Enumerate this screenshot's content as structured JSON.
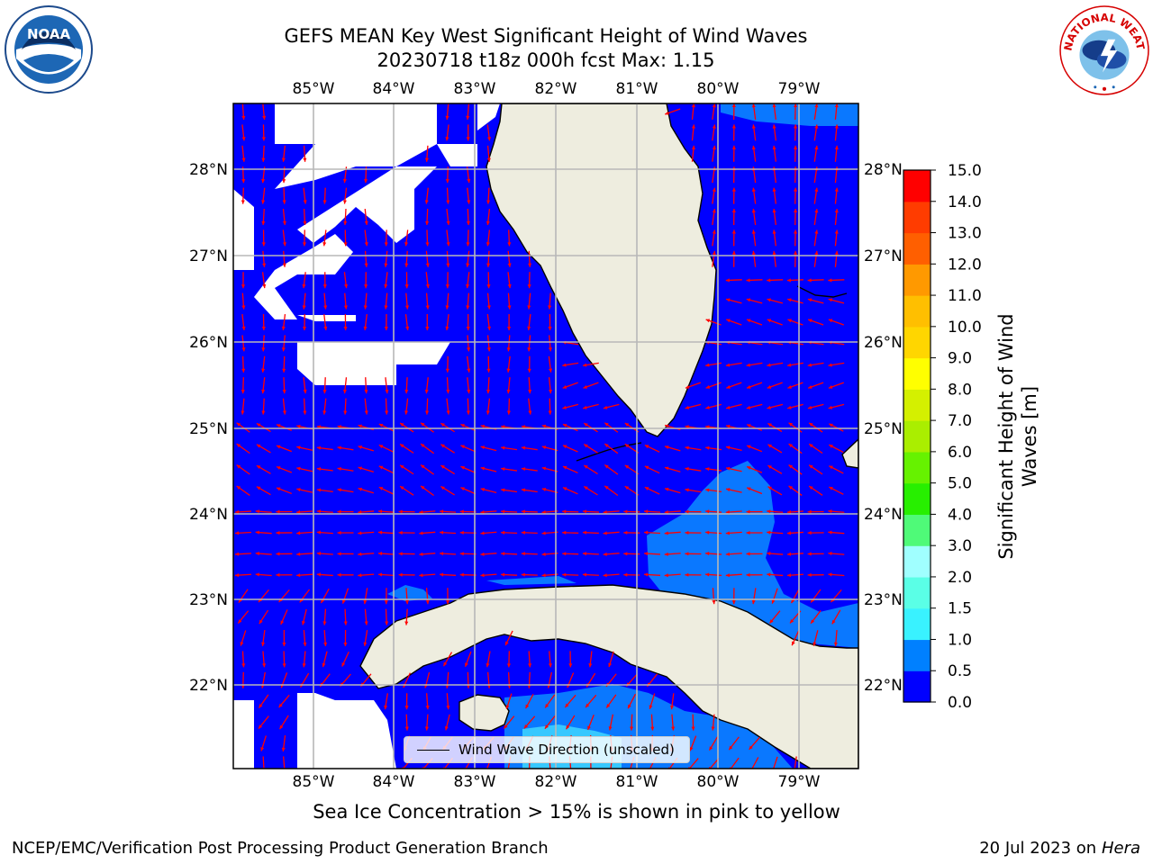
{
  "title": {
    "line1": "GEFS MEAN Key West Significant Height of Wind Waves",
    "line2": "20230718 t18z 000h fcst   Max: 1.15"
  },
  "map": {
    "lon_labels": [
      "85°W",
      "84°W",
      "83°W",
      "82°W",
      "81°W",
      "80°W",
      "79°W"
    ],
    "lat_labels": [
      "28°N",
      "27°N",
      "26°N",
      "25°N",
      "24°N",
      "23°N",
      "22°N"
    ],
    "colors": {
      "ocean_low": "#0000ff",
      "ocean_mid": "#0a78ff",
      "ocean_high": "#37c8ff",
      "land": "#eeeddf",
      "arrows": "#ff0000",
      "grid": "#b8b8b8"
    }
  },
  "legend": {
    "label": "Wind Wave Direction (unscaled)"
  },
  "colorbar": {
    "title": "Significant Height of Wind Waves [m]",
    "ticks": [
      "15.0",
      "14.0",
      "13.0",
      "12.0",
      "11.0",
      "10.0",
      "9.0",
      "8.0",
      "7.0",
      "6.0",
      "5.0",
      "4.0",
      "3.0",
      "2.0",
      "1.5",
      "1.0",
      "0.5",
      "0.0"
    ],
    "colors": [
      "#0000ff",
      "#0080ff",
      "#00d8ff",
      "#39f2ff",
      "#5affe6",
      "#a0ffff",
      "#4ffa78",
      "#00e000",
      "#27ef00",
      "#66f200",
      "#aaee00",
      "#d4f000",
      "#f0f000",
      "#ffff00",
      "#ffd600",
      "#ffbf00",
      "#ff9900",
      "#ff7f00",
      "#ff5f00",
      "#ff3c00",
      "#ff0000"
    ]
  },
  "caption": "Sea Ice Concentration > 15% is shown in pink to yellow",
  "footer": {
    "left": "NCEP/EMC/Verification Post Processing Product Generation Branch",
    "right_prefix": "20 Jul 2023 on ",
    "right_host": "Hera"
  },
  "logos": {
    "noaa_text": "NOAA",
    "nws_text": "NATIONAL WEATHER SERVICE"
  }
}
